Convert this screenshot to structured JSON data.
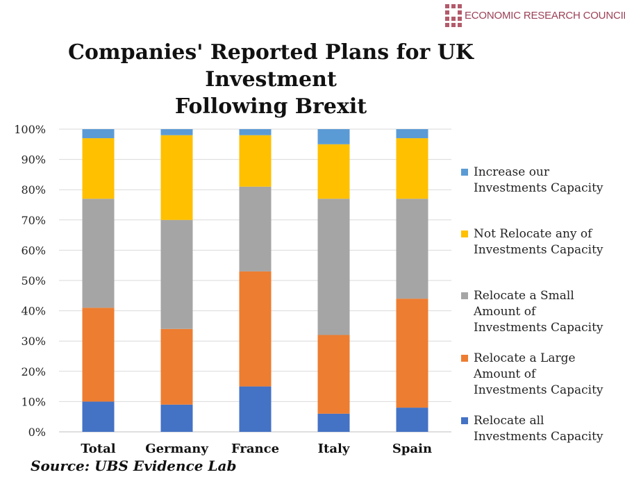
{
  "logo": {
    "text": "ECONOMIC RESEARCH COUNCIL",
    "color": "#9b3f55"
  },
  "title_lines": [
    "Companies' Reported Plans for UK",
    "Investment",
    "Following Brexit"
  ],
  "source": "Source: UBS Evidence Lab",
  "chart_data": {
    "type": "bar",
    "stacked": true,
    "percent": true,
    "title": "Companies' Reported Plans for UK Investment Following Brexit",
    "categories": [
      "Total",
      "Germany",
      "France",
      "Italy",
      "Spain"
    ],
    "ylim": [
      0,
      100
    ],
    "yticks": [
      0,
      10,
      20,
      30,
      40,
      50,
      60,
      70,
      80,
      90,
      100
    ],
    "ytick_labels": [
      "0%",
      "10%",
      "20%",
      "30%",
      "40%",
      "50%",
      "60%",
      "70%",
      "80%",
      "90%",
      "100%"
    ],
    "grid": true,
    "legend_position": "right",
    "series": [
      {
        "name": "Relocate all Investments Capacity",
        "color": "#4472c4",
        "values": [
          10,
          9,
          15,
          6,
          8
        ]
      },
      {
        "name": "Relocate a Large Amount of Investments Capacity",
        "color": "#ed7d31",
        "values": [
          31,
          25,
          38,
          26,
          36
        ]
      },
      {
        "name": "Relocate a Small Amount of Investments Capacity",
        "color": "#a5a5a5",
        "values": [
          36,
          36,
          28,
          45,
          33
        ]
      },
      {
        "name": "Not Relocate any of Investments Capacity",
        "color": "#ffc000",
        "values": [
          20,
          28,
          17,
          18,
          20
        ]
      },
      {
        "name": "Increase our Investments Capacity",
        "color": "#5b9bd5",
        "values": [
          3,
          2,
          2,
          5,
          3
        ]
      }
    ]
  },
  "legend_entries": [
    {
      "label": "Increase our\nInvestments Capacity",
      "color": "#5b9bd5"
    },
    {
      "label": "Not Relocate any of\nInvestments Capacity",
      "color": "#ffc000"
    },
    {
      "label": "Relocate a Small\nAmount of\nInvestments Capacity",
      "color": "#a5a5a5"
    },
    {
      "label": "Relocate a Large\nAmount of\nInvestments Capacity",
      "color": "#ed7d31"
    },
    {
      "label": "Relocate all\nInvestments Capacity",
      "color": "#4472c4"
    }
  ]
}
